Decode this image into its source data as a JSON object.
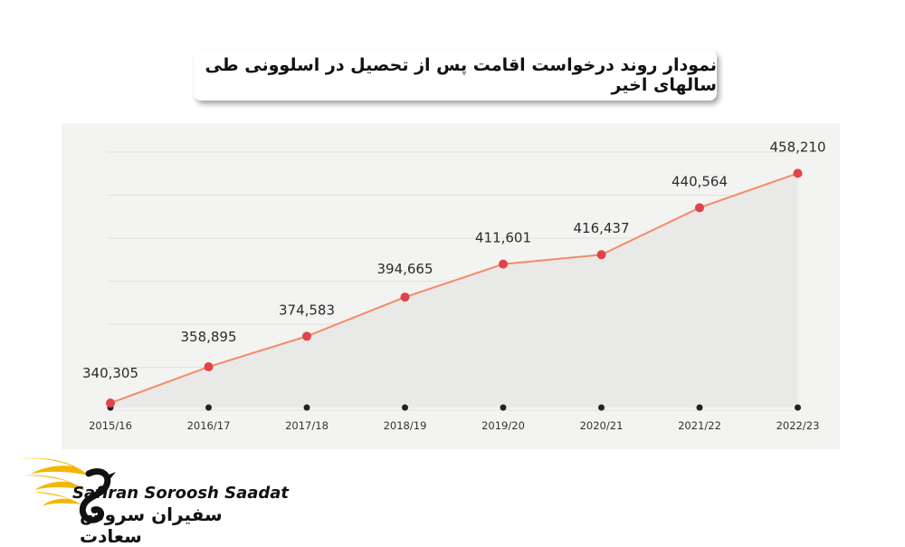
{
  "header": {
    "title": "نمودار روند درخواست اقامت پس از تحصیل در اسلوونی طی سالهای اخیر"
  },
  "brand": {
    "name_en": "Safiran Soroosh Saadat",
    "name_fa": "سفیران سروش سعادت",
    "logo_icon": "swan-wing-logo-icon"
  },
  "colors": {
    "line": "#f28b6a",
    "marker": "#e0434a",
    "area": "#e9e9e7",
    "panel": "#f3f3f1",
    "tick_dot": "#222222",
    "brand_gold": "#f2b705"
  },
  "chart_data": {
    "type": "area",
    "categories": [
      "2015/16",
      "2016/17",
      "2017/18",
      "2018/19",
      "2019/20",
      "2020/21",
      "2021/22",
      "2022/23"
    ],
    "series": [
      {
        "values": [
          340305,
          358895,
          374583,
          394665,
          411601,
          416437,
          440564,
          458210
        ]
      }
    ],
    "data_labels": [
      "340,305",
      "358,895",
      "374,583",
      "394,665",
      "411,601",
      "416,437",
      "440,564",
      "458,210"
    ],
    "title": "",
    "xlabel": "",
    "ylabel": "",
    "ylim": [
      338000,
      470000
    ],
    "grid": true,
    "legend": "none"
  }
}
